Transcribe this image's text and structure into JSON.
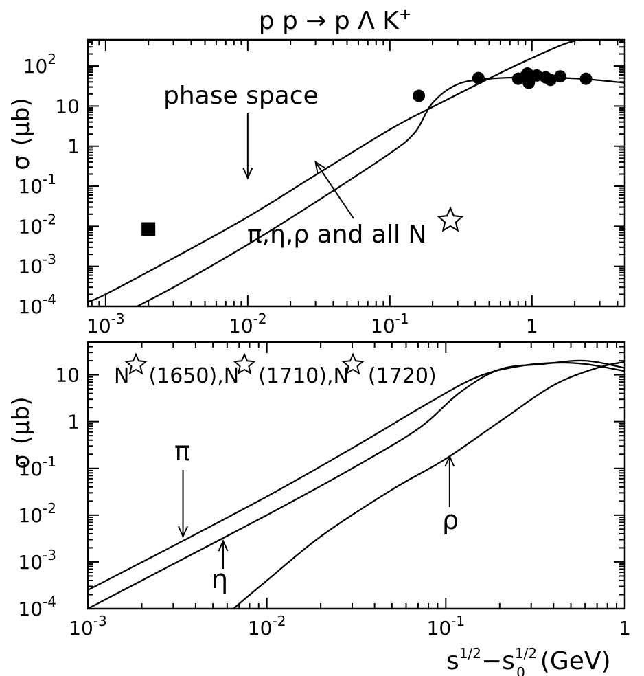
{
  "chart_data": [
    {
      "type": "line",
      "title": "p p → p Λ K",
      "title_superscript": "+",
      "ylabel": "σ",
      "ylabel_unit": "(μb)",
      "xscale": "log",
      "yscale": "log",
      "xlim": [
        0.00075,
        4.5
      ],
      "ylim": [
        0.0001,
        450
      ],
      "grid": false,
      "x_ticks": [
        {
          "base": "10",
          "exp": "-3"
        },
        {
          "base": "10",
          "exp": "-2"
        },
        {
          "base": "10",
          "exp": "-1"
        },
        {
          "base": "1",
          "exp": ""
        }
      ],
      "y_ticks": [
        {
          "base": "10",
          "exp": "-4"
        },
        {
          "base": "10",
          "exp": "-3"
        },
        {
          "base": "10",
          "exp": "-2"
        },
        {
          "base": "10",
          "exp": "-1"
        },
        {
          "base": "1",
          "exp": ""
        },
        {
          "base": "10",
          "exp": ""
        },
        {
          "base": "10",
          "exp": "2"
        }
      ],
      "series": [
        {
          "x": [
            0.00075,
            0.001,
            0.003,
            0.01,
            0.03,
            0.1,
            0.2,
            0.4,
            0.8,
            1.6,
            2.2
          ],
          "y": [
            0.00013,
            0.0002,
            0.0016,
            0.017,
            0.19,
            2.6,
            9.5,
            33,
            110,
            330,
            460
          ]
        },
        {
          "x": [
            0.001,
            0.003,
            0.01,
            0.03,
            0.1,
            0.15,
            0.2,
            0.3,
            0.5,
            1.0,
            2.0,
            3.0,
            4.5
          ],
          "y": [
            4e-05,
            0.0003,
            0.0035,
            0.04,
            0.66,
            2.2,
            12,
            35,
            48,
            52,
            49,
            44,
            38
          ]
        }
      ],
      "markers": [
        {
          "shape": "square",
          "points": [
            {
              "x": 0.002,
              "y": 0.0085
            }
          ]
        },
        {
          "shape": "circle",
          "points": [
            {
              "x": 0.16,
              "y": 18
            },
            {
              "x": 0.42,
              "y": 50
            },
            {
              "x": 0.8,
              "y": 48
            },
            {
              "x": 0.9,
              "y": 55
            },
            {
              "x": 0.93,
              "y": 65
            },
            {
              "x": 0.95,
              "y": 38
            },
            {
              "x": 1.08,
              "y": 58
            },
            {
              "x": 1.25,
              "y": 52
            },
            {
              "x": 1.35,
              "y": 45
            },
            {
              "x": 1.58,
              "y": 55
            },
            {
              "x": 2.4,
              "y": 48
            }
          ]
        }
      ],
      "annotations": [
        {
          "text": "phase space",
          "arrow_to": {
            "x": 0.01,
            "y": 0.16
          }
        },
        {
          "text": "π,η,ρ and all N",
          "star": true,
          "arrow_to": {
            "x": 0.03,
            "y": 0.4
          }
        }
      ]
    },
    {
      "type": "line",
      "ylabel": "σ",
      "ylabel_unit": "(μb)",
      "xlabel_parts": [
        "s",
        "1/2",
        "−s",
        "1/2",
        "0",
        "(GeV)"
      ],
      "xscale": "log",
      "yscale": "log",
      "xlim": [
        0.001,
        1
      ],
      "ylim": [
        0.0001,
        50
      ],
      "grid": false,
      "x_ticks": [
        {
          "base": "10",
          "exp": "-3"
        },
        {
          "base": "10",
          "exp": "-2"
        },
        {
          "base": "10",
          "exp": "-1"
        },
        {
          "base": "1",
          "exp": ""
        }
      ],
      "y_ticks": [
        {
          "base": "10",
          "exp": "-4"
        },
        {
          "base": "10",
          "exp": "-3"
        },
        {
          "base": "10",
          "exp": "-2"
        },
        {
          "base": "10",
          "exp": "-1"
        },
        {
          "base": "1",
          "exp": ""
        },
        {
          "base": "10",
          "exp": ""
        }
      ],
      "label_parts": [
        "N",
        "(1650),N",
        "(1710),N",
        "(1720)"
      ],
      "series": [
        {
          "x": [
            0.001,
            0.003,
            0.01,
            0.03,
            0.08,
            0.15,
            0.25,
            0.4,
            0.6,
            1.0
          ],
          "y": [
            0.00025,
            0.0022,
            0.025,
            0.27,
            2.5,
            9,
            15,
            18,
            17,
            12
          ]
        },
        {
          "x": [
            0.001,
            0.003,
            0.01,
            0.03,
            0.07,
            0.12,
            0.2,
            0.35,
            0.6,
            1.0
          ],
          "y": [
            0.0001,
            0.0009,
            0.01,
            0.1,
            0.7,
            4.2,
            13,
            17,
            20,
            14
          ]
        },
        {
          "x": [
            0.0065,
            0.01,
            0.02,
            0.05,
            0.1,
            0.2,
            0.4,
            0.7,
            1.0
          ],
          "y": [
            0.0001,
            0.0004,
            0.0035,
            0.035,
            0.16,
            1.0,
            6,
            14,
            19
          ]
        }
      ],
      "annotations": [
        {
          "text": "π",
          "arrow_to": {
            "x": 0.0034,
            "y": 0.0035
          }
        },
        {
          "text": "η",
          "arrow_to": {
            "x": 0.0057,
            "y": 0.0028
          }
        },
        {
          "text": "ρ",
          "arrow_to": {
            "x": 0.105,
            "y": 0.18
          }
        }
      ]
    }
  ]
}
